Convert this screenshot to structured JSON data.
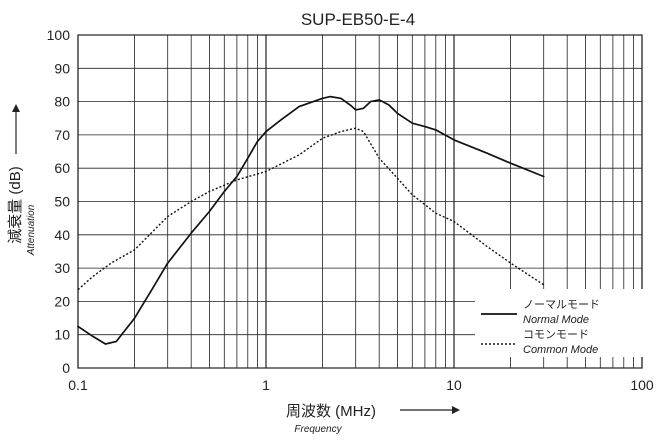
{
  "chart_data": {
    "type": "line",
    "title": "SUP-EB50-E-4",
    "xlabel": "周波数 (MHz)",
    "xlabel_sub": "Frequency",
    "ylabel": "減衰量 (dB)",
    "ylabel_sub": "Attenuation",
    "x_scale": "log",
    "xlim": [
      0.1,
      100
    ],
    "ylim": [
      0,
      100
    ],
    "x_ticks": [
      0.1,
      1,
      10,
      100
    ],
    "x_tick_labels": [
      "0.1",
      "1",
      "10",
      "100"
    ],
    "y_ticks": [
      0,
      10,
      20,
      30,
      40,
      50,
      60,
      70,
      80,
      90,
      100
    ],
    "y_tick_labels": [
      "0",
      "10",
      "20",
      "30",
      "40",
      "50",
      "60",
      "70",
      "80",
      "90",
      "100"
    ],
    "grid": true,
    "legend_position": "bottom-right",
    "series": [
      {
        "name": "ノーマルモード",
        "name_sub": "Normal Mode",
        "style": "solid",
        "color": "#111111",
        "x": [
          0.1,
          0.12,
          0.14,
          0.16,
          0.2,
          0.25,
          0.3,
          0.4,
          0.5,
          0.6,
          0.7,
          0.8,
          0.9,
          1.0,
          1.2,
          1.5,
          2.0,
          2.2,
          2.5,
          2.8,
          3.0,
          3.3,
          3.6,
          4.0,
          4.5,
          5.0,
          6.0,
          7.0,
          8.0,
          10.0,
          15.0,
          20.0,
          30.0
        ],
        "y": [
          12.5,
          9.5,
          7.2,
          8.0,
          15.0,
          24.0,
          31.5,
          40.5,
          47.0,
          53.0,
          57.5,
          63.0,
          68.0,
          71.0,
          74.5,
          78.5,
          81.0,
          81.5,
          81.0,
          79.0,
          77.5,
          78.0,
          80.0,
          80.5,
          79.0,
          76.5,
          73.5,
          72.5,
          71.5,
          68.5,
          64.5,
          61.5,
          57.5
        ]
      },
      {
        "name": "コモンモード",
        "name_sub": "Common Mode",
        "style": "dotted",
        "color": "#111111",
        "x": [
          0.1,
          0.12,
          0.15,
          0.2,
          0.3,
          0.4,
          0.5,
          0.7,
          1.0,
          1.5,
          2.0,
          2.5,
          3.0,
          3.3,
          4.0,
          5.0,
          6.0,
          8.0,
          10.0,
          15.0,
          20.0,
          30.0
        ],
        "y": [
          23.5,
          27.5,
          31.5,
          35.5,
          45.5,
          50.0,
          53.0,
          56.5,
          59.0,
          64.0,
          69.0,
          71.0,
          72.0,
          71.0,
          63.0,
          57.0,
          52.0,
          46.5,
          44.0,
          36.5,
          31.5,
          25.0
        ]
      }
    ]
  }
}
